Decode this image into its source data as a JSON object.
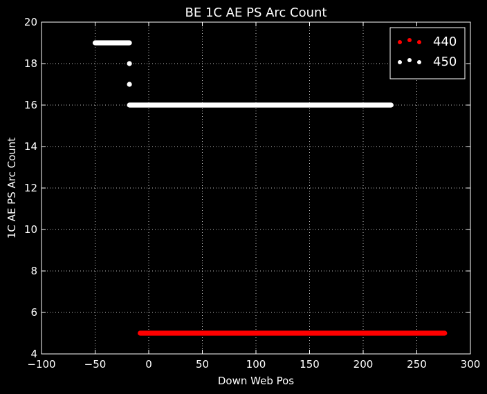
{
  "chart_data": {
    "type": "scatter",
    "title": "BE 1C AE PS Arc Count",
    "xlabel": "Down Web Pos",
    "ylabel": "1C AE PS Arc Count",
    "xlim": [
      -100,
      300
    ],
    "ylim": [
      4,
      20
    ],
    "xticks": [
      "−100",
      "−50",
      "0",
      "50",
      "100",
      "150",
      "200",
      "250",
      "300"
    ],
    "yticks": [
      "4",
      "6",
      "8",
      "10",
      "12",
      "14",
      "16",
      "18",
      "20"
    ],
    "grid": true,
    "legend_position": "top-right",
    "background": "#000000",
    "series": [
      {
        "name": "440",
        "color": "#ff0000",
        "segments": [
          {
            "x_start": -8,
            "x_end": 276,
            "y": 5
          }
        ]
      },
      {
        "name": "450",
        "color": "#ffffff",
        "segments": [
          {
            "x_start": -50,
            "x_end": -18,
            "y": 19
          },
          {
            "x_start": -18,
            "x_end": -18,
            "y": 18
          },
          {
            "x_start": -18,
            "x_end": -18,
            "y": 17
          },
          {
            "x_start": -18,
            "x_end": 226,
            "y": 16
          }
        ]
      }
    ]
  }
}
